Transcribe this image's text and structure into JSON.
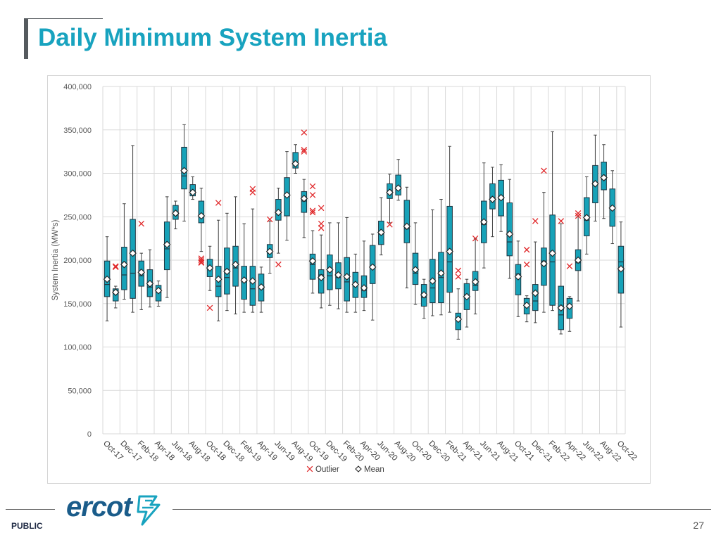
{
  "header": {
    "title": "Daily Minimum System Inertia"
  },
  "footer": {
    "label": "PUBLIC",
    "page_number": "27",
    "logo_text": "ercot"
  },
  "colors": {
    "title": "#18a3bf",
    "box_fill": "#17a2b8",
    "outlier": "#e0292b",
    "grid": "#d9d9d9",
    "logo": "#1a5c8a"
  },
  "icons": {
    "logo_mark": "ercot-bolt-icon"
  },
  "chart_data": {
    "type": "boxplot",
    "title": "",
    "ylabel": "System Inertia (MW*s)",
    "xlabel": "",
    "ylim": [
      0,
      400000
    ],
    "yticks": [
      0,
      50000,
      100000,
      150000,
      200000,
      250000,
      300000,
      350000,
      400000
    ],
    "ytick_labels": [
      "0",
      "50,000",
      "100,000",
      "150,000",
      "200,000",
      "250,000",
      "300,000",
      "350,000",
      "400,000"
    ],
    "xtick_labels": [
      "Oct-17",
      "Dec-17",
      "Feb-18",
      "Apr-18",
      "Jun-18",
      "Aug-18",
      "Oct-18",
      "Dec-18",
      "Feb-19",
      "Apr-19",
      "Jun-19",
      "Aug-19",
      "Oct-19",
      "Dec-19",
      "Feb-20",
      "Apr-20",
      "Jun-20",
      "Aug-20",
      "Oct-20",
      "Dec-20",
      "Feb-21",
      "Apr-21",
      "Jun-21",
      "Aug-21",
      "Oct-21",
      "Dec-21",
      "Feb-22",
      "Apr-22",
      "Jun-22",
      "Aug-22",
      "Oct-22"
    ],
    "grid": true,
    "legend": {
      "position": "bottom",
      "entries": [
        "Outlier",
        "Mean"
      ]
    },
    "series": [
      {
        "month": "Oct-17",
        "whisker_min": 130000,
        "q1": 158000,
        "median": 172000,
        "q3": 199000,
        "whisker_max": 227000,
        "mean": 178000,
        "outliers": []
      },
      {
        "month": "Nov-17",
        "whisker_min": 145000,
        "q1": 153000,
        "median": 162000,
        "q3": 167000,
        "whisker_max": 170000,
        "mean": 163000,
        "outliers": [
          193000,
          192000
        ]
      },
      {
        "month": "Dec-17",
        "whisker_min": 155000,
        "q1": 166000,
        "median": 183000,
        "q3": 215000,
        "whisker_max": 265000,
        "mean": 195000,
        "outliers": []
      },
      {
        "month": "Jan-18",
        "whisker_min": 140000,
        "q1": 156000,
        "median": 185000,
        "q3": 247000,
        "whisker_max": 332000,
        "mean": 208000,
        "outliers": []
      },
      {
        "month": "Feb-18",
        "whisker_min": 143000,
        "q1": 170000,
        "median": 182000,
        "q3": 199000,
        "whisker_max": 208000,
        "mean": 186000,
        "outliers": [
          242000
        ]
      },
      {
        "month": "Mar-18",
        "whisker_min": 146000,
        "q1": 158000,
        "median": 169000,
        "q3": 189000,
        "whisker_max": 212000,
        "mean": 173000,
        "outliers": []
      },
      {
        "month": "Apr-18",
        "whisker_min": 147000,
        "q1": 153000,
        "median": 163000,
        "q3": 171000,
        "whisker_max": 176000,
        "mean": 165000,
        "outliers": []
      },
      {
        "month": "May-18",
        "whisker_min": 157000,
        "q1": 189000,
        "median": 213000,
        "q3": 244000,
        "whisker_max": 273000,
        "mean": 218000,
        "outliers": []
      },
      {
        "month": "Jun-18",
        "whisker_min": 236000,
        "q1": 247000,
        "median": 252000,
        "q3": 263000,
        "whisker_max": 268000,
        "mean": 254000,
        "outliers": []
      },
      {
        "month": "Jul-18",
        "whisker_min": 245000,
        "q1": 282000,
        "median": 297000,
        "q3": 330000,
        "whisker_max": 356000,
        "mean": 303000,
        "outliers": []
      },
      {
        "month": "Aug-18",
        "whisker_min": 270000,
        "q1": 274000,
        "median": 280000,
        "q3": 287000,
        "whisker_max": 296000,
        "mean": 278000,
        "outliers": []
      },
      {
        "month": "Sep-18",
        "whisker_min": 210000,
        "q1": 243000,
        "median": 250000,
        "q3": 268000,
        "whisker_max": 283000,
        "mean": 251000,
        "outliers": [
          202000,
          198000,
          200000,
          197000
        ]
      },
      {
        "month": "Oct-18",
        "whisker_min": 165000,
        "q1": 181000,
        "median": 190000,
        "q3": 201000,
        "whisker_max": 216000,
        "mean": 191000,
        "outliers": [
          145000
        ]
      },
      {
        "month": "Nov-18",
        "whisker_min": 130000,
        "q1": 158000,
        "median": 170000,
        "q3": 193000,
        "whisker_max": 246000,
        "mean": 178000,
        "outliers": [
          266000
        ]
      },
      {
        "month": "Dec-18",
        "whisker_min": 142000,
        "q1": 161000,
        "median": 180000,
        "q3": 214000,
        "whisker_max": 254000,
        "mean": 187000,
        "outliers": []
      },
      {
        "month": "Jan-19",
        "whisker_min": 138000,
        "q1": 170000,
        "median": 191000,
        "q3": 216000,
        "whisker_max": 273000,
        "mean": 195000,
        "outliers": []
      },
      {
        "month": "Feb-19",
        "whisker_min": 140000,
        "q1": 155000,
        "median": 175000,
        "q3": 193000,
        "whisker_max": 242000,
        "mean": 177000,
        "outliers": []
      },
      {
        "month": "Mar-19",
        "whisker_min": 140000,
        "q1": 148000,
        "median": 167000,
        "q3": 193000,
        "whisker_max": 259000,
        "mean": 176000,
        "outliers": [
          282000,
          278000
        ]
      },
      {
        "month": "Apr-19",
        "whisker_min": 140000,
        "q1": 153000,
        "median": 167000,
        "q3": 184000,
        "whisker_max": 192000,
        "mean": 169000,
        "outliers": []
      },
      {
        "month": "May-19",
        "whisker_min": 185000,
        "q1": 203000,
        "median": 210000,
        "q3": 218000,
        "whisker_max": 245000,
        "mean": 210000,
        "outliers": [
          247000
        ]
      },
      {
        "month": "Jun-19",
        "whisker_min": 208000,
        "q1": 246000,
        "median": 255000,
        "q3": 270000,
        "whisker_max": 283000,
        "mean": 255000,
        "outliers": [
          195000
        ]
      },
      {
        "month": "Jul-19",
        "whisker_min": 223000,
        "q1": 251000,
        "median": 276000,
        "q3": 295000,
        "whisker_max": 325000,
        "mean": 275000,
        "outliers": []
      },
      {
        "month": "Aug-19",
        "whisker_min": 300000,
        "q1": 306000,
        "median": 313000,
        "q3": 324000,
        "whisker_max": 333000,
        "mean": 311000,
        "outliers": []
      },
      {
        "month": "Sep-19",
        "whisker_min": 226000,
        "q1": 255000,
        "median": 268000,
        "q3": 279000,
        "whisker_max": 293000,
        "mean": 271000,
        "outliers": [
          347000,
          327000,
          325000
        ]
      },
      {
        "month": "Oct-19",
        "whisker_min": 162000,
        "q1": 178000,
        "median": 195000,
        "q3": 207000,
        "whisker_max": 234000,
        "mean": 199000,
        "outliers": [
          285000,
          275000,
          257000,
          255000
        ]
      },
      {
        "month": "Nov-19",
        "whisker_min": 145000,
        "q1": 162000,
        "median": 183000,
        "q3": 189000,
        "whisker_max": 229000,
        "mean": 180000,
        "outliers": [
          260000,
          242000,
          237000
        ]
      },
      {
        "month": "Dec-19",
        "whisker_min": 148000,
        "q1": 166000,
        "median": 182000,
        "q3": 206000,
        "whisker_max": 243000,
        "mean": 189000,
        "outliers": []
      },
      {
        "month": "Jan-20",
        "whisker_min": 144000,
        "q1": 167000,
        "median": 180000,
        "q3": 197000,
        "whisker_max": 243000,
        "mean": 183000,
        "outliers": []
      },
      {
        "month": "Feb-20",
        "whisker_min": 140000,
        "q1": 153000,
        "median": 175000,
        "q3": 203000,
        "whisker_max": 249000,
        "mean": 181000,
        "outliers": []
      },
      {
        "month": "Mar-20",
        "whisker_min": 140000,
        "q1": 157000,
        "median": 173000,
        "q3": 186000,
        "whisker_max": 207000,
        "mean": 172000,
        "outliers": []
      },
      {
        "month": "Apr-20",
        "whisker_min": 142000,
        "q1": 157000,
        "median": 165000,
        "q3": 182000,
        "whisker_max": 222000,
        "mean": 168000,
        "outliers": []
      },
      {
        "month": "May-20",
        "whisker_min": 131000,
        "q1": 173000,
        "median": 191000,
        "q3": 217000,
        "whisker_max": 230000,
        "mean": 192000,
        "outliers": []
      },
      {
        "month": "Jun-20",
        "whisker_min": 206000,
        "q1": 218000,
        "median": 230000,
        "q3": 245000,
        "whisker_max": 272000,
        "mean": 232000,
        "outliers": []
      },
      {
        "month": "Jul-20",
        "whisker_min": 243000,
        "q1": 271000,
        "median": 280000,
        "q3": 288000,
        "whisker_max": 299000,
        "mean": 278000,
        "outliers": [
          241000
        ]
      },
      {
        "month": "Aug-20",
        "whisker_min": 269000,
        "q1": 275000,
        "median": 283000,
        "q3": 298000,
        "whisker_max": 316000,
        "mean": 283000,
        "outliers": []
      },
      {
        "month": "Sep-20",
        "whisker_min": 168000,
        "q1": 220000,
        "median": 236000,
        "q3": 269000,
        "whisker_max": 284000,
        "mean": 239000,
        "outliers": []
      },
      {
        "month": "Oct-20",
        "whisker_min": 149000,
        "q1": 172000,
        "median": 185000,
        "q3": 208000,
        "whisker_max": 243000,
        "mean": 189000,
        "outliers": []
      },
      {
        "month": "Nov-20",
        "whisker_min": 133000,
        "q1": 147000,
        "median": 157000,
        "q3": 172000,
        "whisker_max": 178000,
        "mean": 160000,
        "outliers": []
      },
      {
        "month": "Dec-20",
        "whisker_min": 136000,
        "q1": 151000,
        "median": 168000,
        "q3": 201000,
        "whisker_max": 258000,
        "mean": 176000,
        "outliers": []
      },
      {
        "month": "Jan-21",
        "whisker_min": 137000,
        "q1": 151000,
        "median": 180000,
        "q3": 209000,
        "whisker_max": 270000,
        "mean": 185000,
        "outliers": []
      },
      {
        "month": "Feb-21",
        "whisker_min": 140000,
        "q1": 163000,
        "median": 198000,
        "q3": 262000,
        "whisker_max": 331000,
        "mean": 210000,
        "outliers": []
      },
      {
        "month": "Mar-21",
        "whisker_min": 109000,
        "q1": 120000,
        "median": 132000,
        "q3": 139000,
        "whisker_max": 167000,
        "mean": 132000,
        "outliers": [
          188000,
          181000
        ]
      },
      {
        "month": "Apr-21",
        "whisker_min": 123000,
        "q1": 143000,
        "median": 160000,
        "q3": 173000,
        "whisker_max": 178000,
        "mean": 158000,
        "outliers": []
      },
      {
        "month": "May-21",
        "whisker_min": 138000,
        "q1": 165000,
        "median": 171000,
        "q3": 187000,
        "whisker_max": 225000,
        "mean": 175000,
        "outliers": [
          225000
        ]
      },
      {
        "month": "Jun-21",
        "whisker_min": 191000,
        "q1": 220000,
        "median": 241000,
        "q3": 268000,
        "whisker_max": 312000,
        "mean": 244000,
        "outliers": []
      },
      {
        "month": "Jul-21",
        "whisker_min": 227000,
        "q1": 259000,
        "median": 272000,
        "q3": 288000,
        "whisker_max": 307000,
        "mean": 270000,
        "outliers": []
      },
      {
        "month": "Aug-21",
        "whisker_min": 233000,
        "q1": 251000,
        "median": 271000,
        "q3": 292000,
        "whisker_max": 310000,
        "mean": 272000,
        "outliers": []
      },
      {
        "month": "Sep-21",
        "whisker_min": 179000,
        "q1": 205000,
        "median": 221000,
        "q3": 266000,
        "whisker_max": 293000,
        "mean": 230000,
        "outliers": []
      },
      {
        "month": "Oct-21",
        "whisker_min": 135000,
        "q1": 160000,
        "median": 184000,
        "q3": 195000,
        "whisker_max": 222000,
        "mean": 181000,
        "outliers": []
      },
      {
        "month": "Nov-21",
        "whisker_min": 129000,
        "q1": 138000,
        "median": 147000,
        "q3": 156000,
        "whisker_max": 159000,
        "mean": 148000,
        "outliers": [
          212000,
          195000
        ]
      },
      {
        "month": "Dec-21",
        "whisker_min": 128000,
        "q1": 142000,
        "median": 153000,
        "q3": 172000,
        "whisker_max": 221000,
        "mean": 162000,
        "outliers": [
          245000
        ]
      },
      {
        "month": "Jan-22",
        "whisker_min": 140000,
        "q1": 171000,
        "median": 199000,
        "q3": 214000,
        "whisker_max": 278000,
        "mean": 196000,
        "outliers": [
          303000
        ]
      },
      {
        "month": "Feb-22",
        "whisker_min": 142000,
        "q1": 148000,
        "median": 198000,
        "q3": 252000,
        "whisker_max": 348000,
        "mean": 208000,
        "outliers": []
      },
      {
        "month": "Mar-22",
        "whisker_min": 115000,
        "q1": 120000,
        "median": 137000,
        "q3": 170000,
        "whisker_max": 242000,
        "mean": 145000,
        "outliers": [
          245000
        ]
      },
      {
        "month": "Apr-22",
        "whisker_min": 118000,
        "q1": 133000,
        "median": 147000,
        "q3": 156000,
        "whisker_max": 158000,
        "mean": 147000,
        "outliers": [
          193000
        ]
      },
      {
        "month": "May-22",
        "whisker_min": 153000,
        "q1": 188000,
        "median": 197000,
        "q3": 212000,
        "whisker_max": 250000,
        "mean": 200000,
        "outliers": [
          254000,
          251000
        ]
      },
      {
        "month": "Jun-22",
        "whisker_min": 207000,
        "q1": 228000,
        "median": 246000,
        "q3": 272000,
        "whisker_max": 296000,
        "mean": 249000,
        "outliers": []
      },
      {
        "month": "Jul-22",
        "whisker_min": 245000,
        "q1": 266000,
        "median": 289000,
        "q3": 309000,
        "whisker_max": 344000,
        "mean": 288000,
        "outliers": []
      },
      {
        "month": "Aug-22",
        "whisker_min": 248000,
        "q1": 281000,
        "median": 293000,
        "q3": 313000,
        "whisker_max": 333000,
        "mean": 295000,
        "outliers": []
      },
      {
        "month": "Sep-22",
        "whisker_min": 219000,
        "q1": 239000,
        "median": 261000,
        "q3": 282000,
        "whisker_max": 303000,
        "mean": 260000,
        "outliers": []
      },
      {
        "month": "Oct-22",
        "whisker_min": 123000,
        "q1": 162000,
        "median": 198000,
        "q3": 216000,
        "whisker_max": 244000,
        "mean": 190000,
        "outliers": []
      }
    ]
  }
}
